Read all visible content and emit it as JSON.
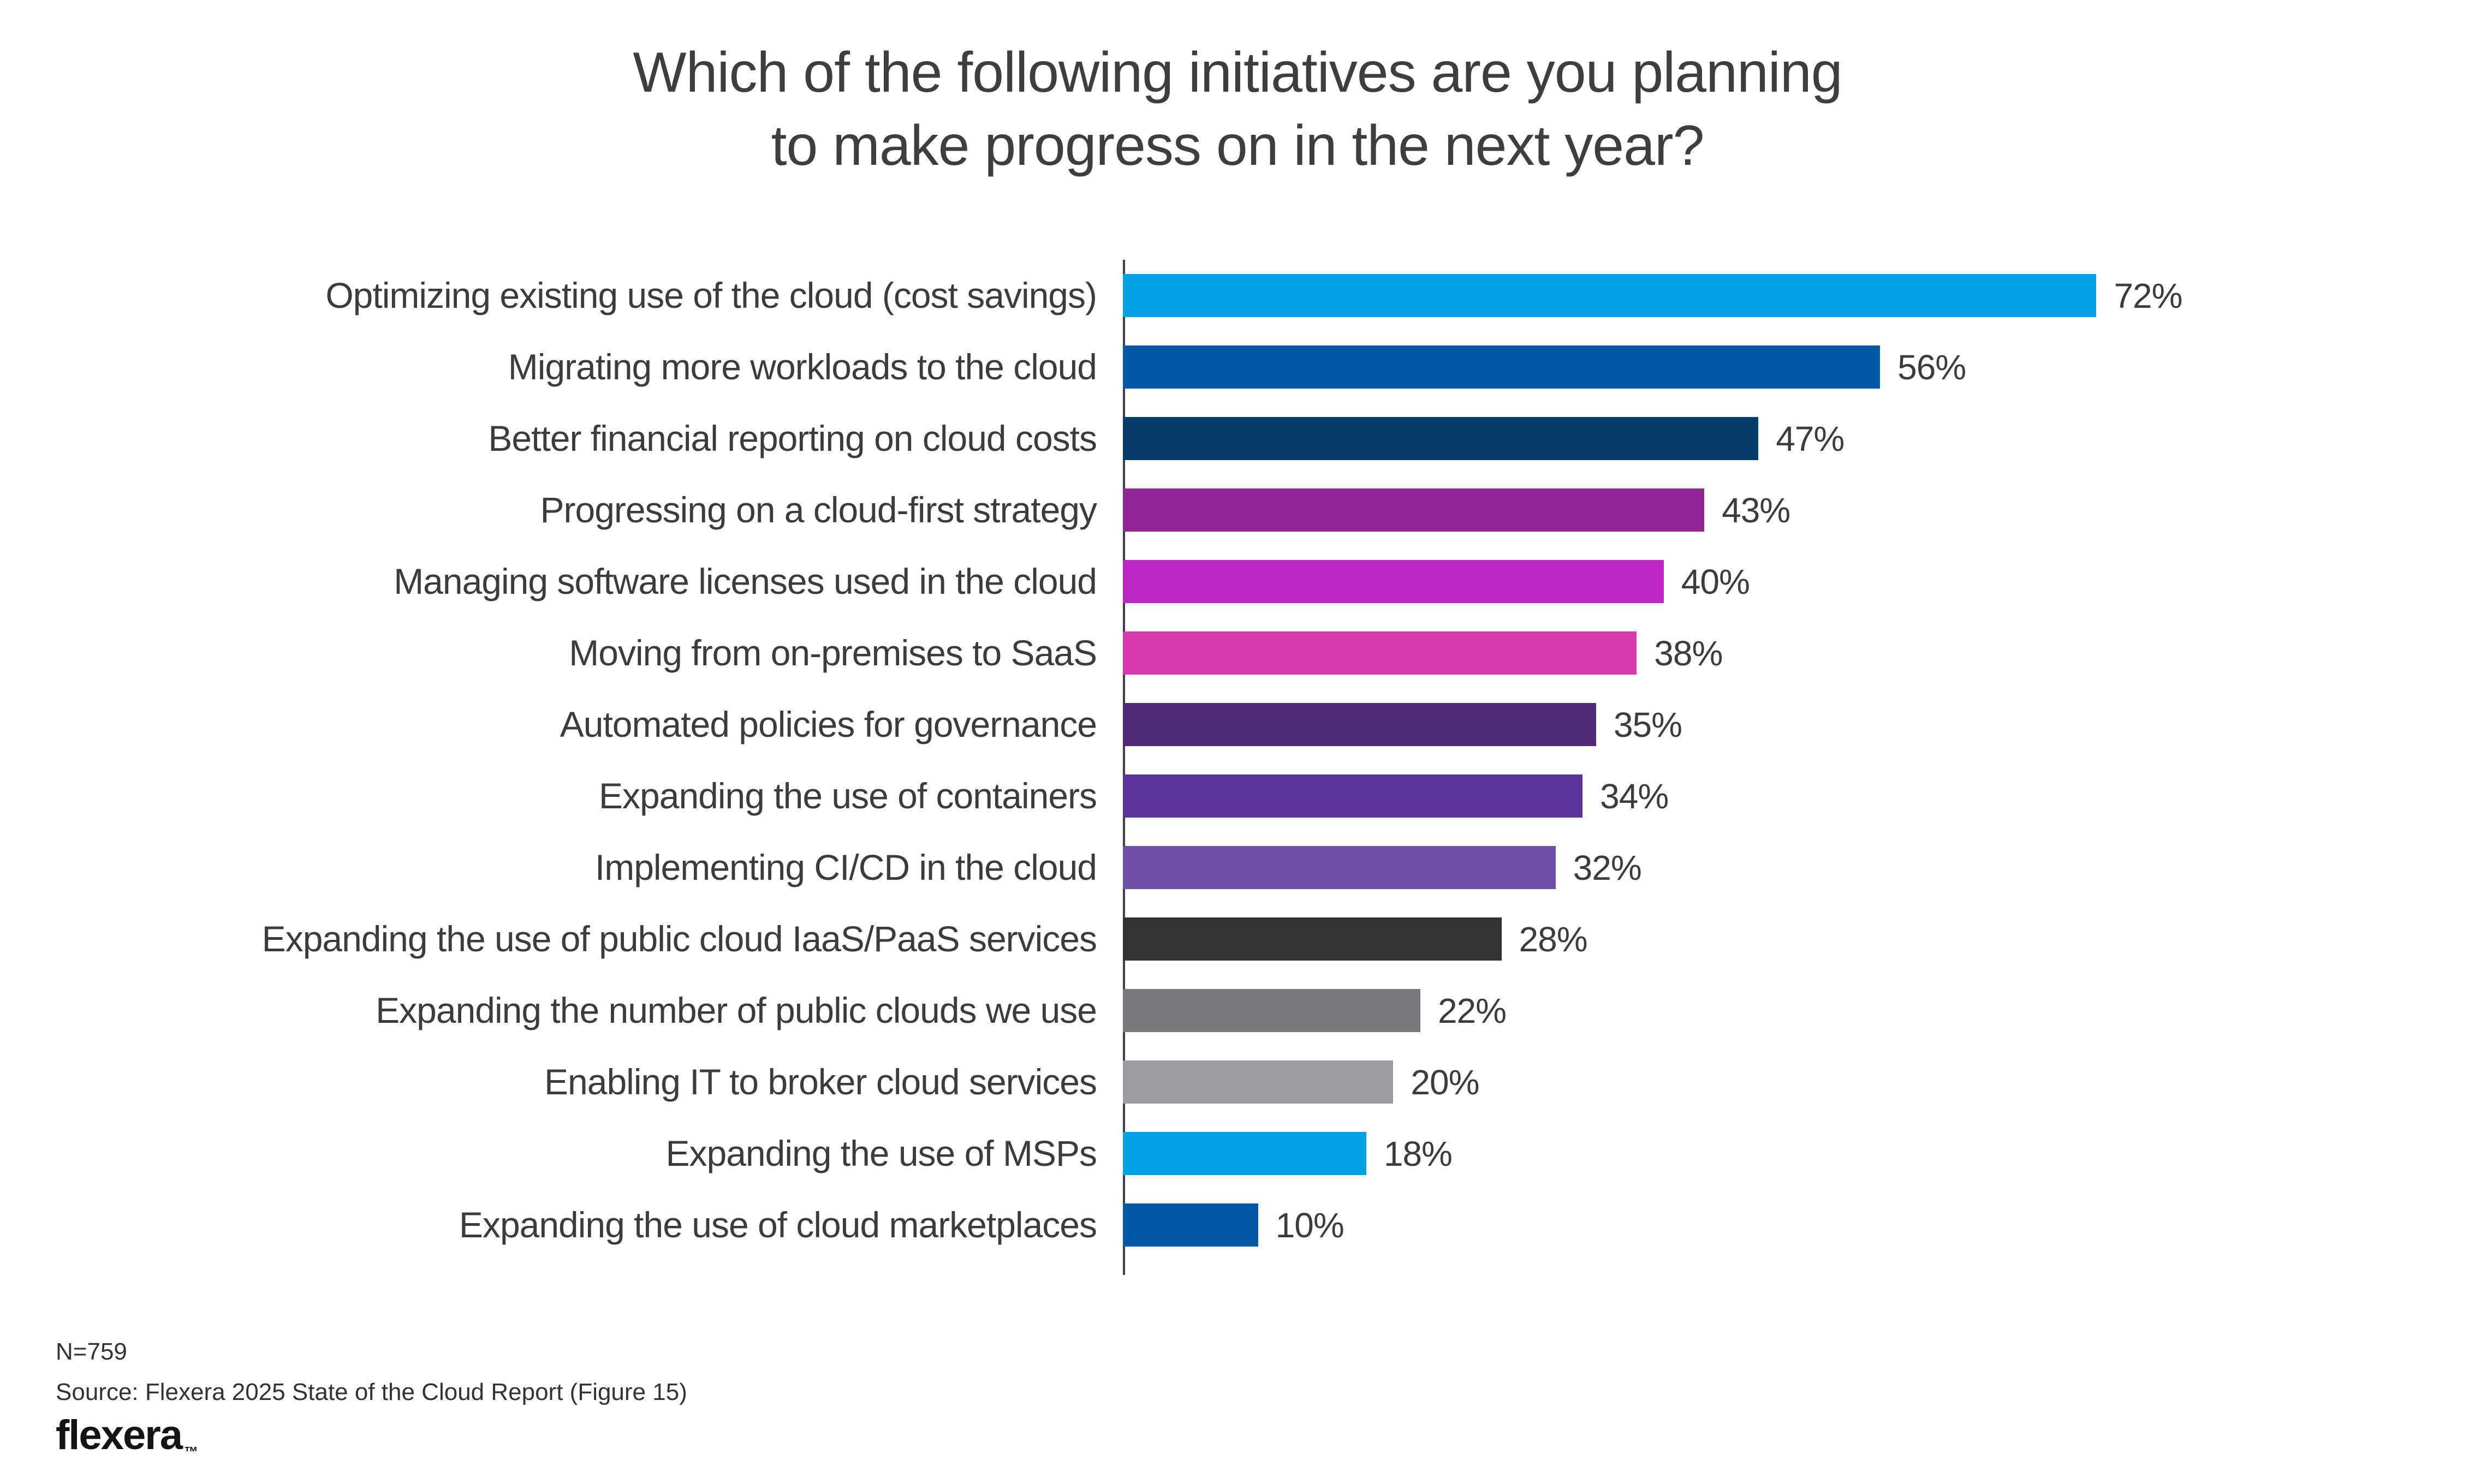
{
  "title": {
    "line1": "Which of the following initiatives are you planning",
    "line2": "to make progress on in the next year?"
  },
  "chart_data": {
    "type": "bar",
    "orientation": "horizontal",
    "title": "Which of the following initiatives are you planning to make progress on in the next year?",
    "xlabel": "",
    "ylabel": "",
    "xlim": [
      0,
      100
    ],
    "grid": false,
    "legend": "none",
    "categories": [
      "Optimizing existing use of the cloud (cost savings)",
      "Migrating more workloads to the cloud",
      "Better financial reporting on cloud costs",
      "Progressing on a cloud-first strategy",
      "Managing software licenses used in the cloud",
      "Moving from on-premises to SaaS",
      "Automated policies for governance",
      "Expanding the use of containers",
      "Implementing CI/CD in the cloud",
      "Expanding the use of public cloud IaaS/PaaS services",
      "Expanding the number of public clouds we use",
      "Enabling IT to broker cloud services",
      "Expanding the use of MSPs",
      "Expanding the use of cloud marketplaces"
    ],
    "values": [
      72,
      56,
      47,
      43,
      40,
      38,
      35,
      34,
      32,
      28,
      22,
      20,
      18,
      10
    ],
    "value_labels": [
      "72%",
      "56%",
      "47%",
      "43%",
      "40%",
      "38%",
      "35%",
      "34%",
      "32%",
      "28%",
      "22%",
      "20%",
      "18%",
      "10%"
    ],
    "colors": [
      "#00A0E1",
      "#0057A6",
      "#073C6A",
      "#8F2695",
      "#BB28C6",
      "#D837AD",
      "#4F2A77",
      "#5C329B",
      "#6F4EA5",
      "#333333",
      "#78787B",
      "#9C9CA0",
      "#00A0E1",
      "#0057A6"
    ],
    "axis_line_color": "#3d4046",
    "text_color": "#3c3c3c"
  },
  "footer": {
    "sample_size": "N=759",
    "source": "Source: Flexera 2025 State of the Cloud Report (Figure 15)",
    "logo_text": "flexera",
    "logo_mark": "™"
  }
}
